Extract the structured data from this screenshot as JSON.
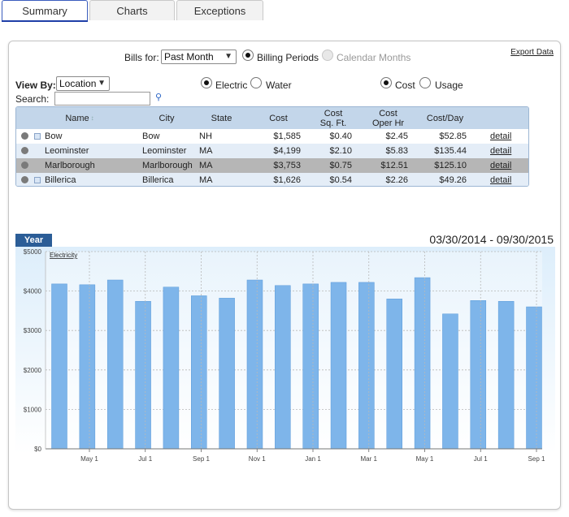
{
  "tabs": [
    {
      "label": "Summary",
      "active": true
    },
    {
      "label": "Charts",
      "active": false
    },
    {
      "label": "Exceptions",
      "active": false
    }
  ],
  "export_label": "Export Data",
  "bills_for": {
    "label": "Bills for:",
    "selected": "Past Month",
    "options": [
      {
        "label": "Billing Periods",
        "checked": true,
        "disabled": false
      },
      {
        "label": "Calendar Months",
        "checked": false,
        "disabled": true
      }
    ]
  },
  "view_by": {
    "label": "View By:",
    "selected": "Location"
  },
  "utility": [
    {
      "label": "Electric",
      "checked": true
    },
    {
      "label": "Water",
      "checked": false
    }
  ],
  "measure": [
    {
      "label": "Cost",
      "checked": true
    },
    {
      "label": "Usage",
      "checked": false
    }
  ],
  "search": {
    "label": "Search:",
    "value": ""
  },
  "table": {
    "headers": [
      "Name",
      "City",
      "State",
      "Cost",
      "Cost\nSq. Ft.",
      "Cost\nOper Hr",
      "Cost/Day"
    ],
    "sort_indicator": "↕",
    "detail_label": "detail",
    "rows": [
      {
        "name": "Bow",
        "city": "Bow",
        "state": "NH",
        "cost": "$1,585",
        "cost_sqft": "$0.40",
        "cost_oper_hr": "$2.45",
        "cost_day": "$52.85",
        "has_icon": true
      },
      {
        "name": "Leominster",
        "city": "Leominster",
        "state": "MA",
        "cost": "$4,199",
        "cost_sqft": "$2.10",
        "cost_oper_hr": "$5.83",
        "cost_day": "$135.44",
        "has_icon": false
      },
      {
        "name": "Marlborough",
        "city": "Marlborough",
        "state": "MA",
        "cost": "$3,753",
        "cost_sqft": "$0.75",
        "cost_oper_hr": "$12.51",
        "cost_day": "$125.10",
        "has_icon": false
      },
      {
        "name": "Billerica",
        "city": "Billerica",
        "state": "MA",
        "cost": "$1,626",
        "cost_sqft": "$0.54",
        "cost_oper_hr": "$2.26",
        "cost_day": "$49.26",
        "has_icon": true
      }
    ]
  },
  "chart_tab_label": "Year",
  "date_range": "03/30/2014 - 09/30/2015",
  "chart_data": {
    "type": "bar",
    "legend": "Electricity",
    "ylim": [
      0,
      5000
    ],
    "yticks": [
      "$0",
      "$1000",
      "$2000",
      "$3000",
      "$4000",
      "$5000"
    ],
    "xticks": [
      "May 1",
      "Jul 1",
      "Sep 1",
      "Nov 1",
      "Jan 1",
      "Mar 1",
      "May 1",
      "Jul 1",
      "Sep 1"
    ],
    "values": [
      4180,
      4160,
      4280,
      3740,
      4100,
      3880,
      3820,
      4280,
      4140,
      4180,
      4220,
      4220,
      3800,
      4340,
      3420,
      3760,
      3740,
      3600
    ],
    "colors": {
      "bar": "#7eb5ea",
      "bar_edge": "#5a9ad9",
      "grid": "#b8b8b8",
      "bg_top": "#ddeefb",
      "bg_bottom": "#ffffff"
    }
  }
}
